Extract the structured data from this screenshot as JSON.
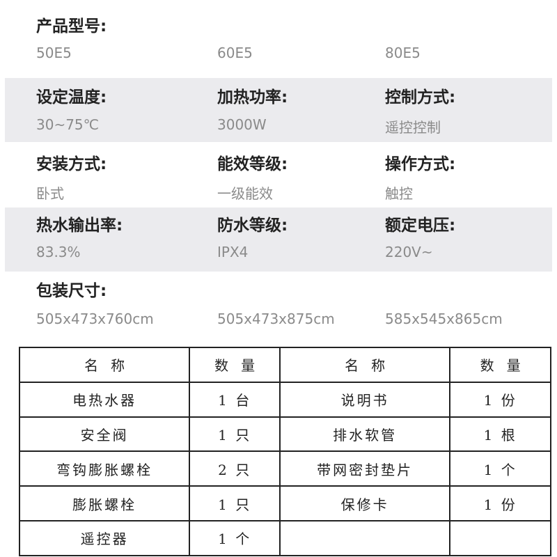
{
  "specs": [
    [
      {
        "label": "产品型号:",
        "value": "50E5"
      },
      {
        "label": "",
        "value": "60E5"
      },
      {
        "label": "",
        "value": "80E5"
      }
    ],
    [
      {
        "label": "设定温度:",
        "value": "30~75℃"
      },
      {
        "label": "加热功率:",
        "value": "3000W"
      },
      {
        "label": "控制方式:",
        "value": "遥控控制"
      }
    ],
    [
      {
        "label": "安装方式:",
        "value": "卧式"
      },
      {
        "label": "能效等级:",
        "value": "一级能效"
      },
      {
        "label": "操作方式:",
        "value": "触控"
      }
    ],
    [
      {
        "label": "热水输出率:",
        "value": "83.3%"
      },
      {
        "label": "防水等级:",
        "value": "IPX4"
      },
      {
        "label": "额定电压:",
        "value": "220V~"
      }
    ],
    [
      {
        "label": "包装尺寸:",
        "value": "505x473x760cm"
      },
      {
        "label": "",
        "value": "505x473x875cm"
      },
      {
        "label": "",
        "value": "585x545x865cm"
      }
    ]
  ],
  "table": {
    "headers": [
      "名称",
      "数量",
      "名称",
      "数量"
    ],
    "rows": [
      [
        "电热水器",
        "1 台",
        "说明书",
        "1 份"
      ],
      [
        "安全阀",
        "1 只",
        "排水软管",
        "1 根"
      ],
      [
        "弯钩膨胀螺栓",
        "2 只",
        "带网密封垫片",
        "1 个"
      ],
      [
        "膨胀螺栓",
        "1 只",
        "保修卡",
        "1 份"
      ],
      [
        "遥控器",
        "1 个",
        "",
        ""
      ]
    ]
  }
}
